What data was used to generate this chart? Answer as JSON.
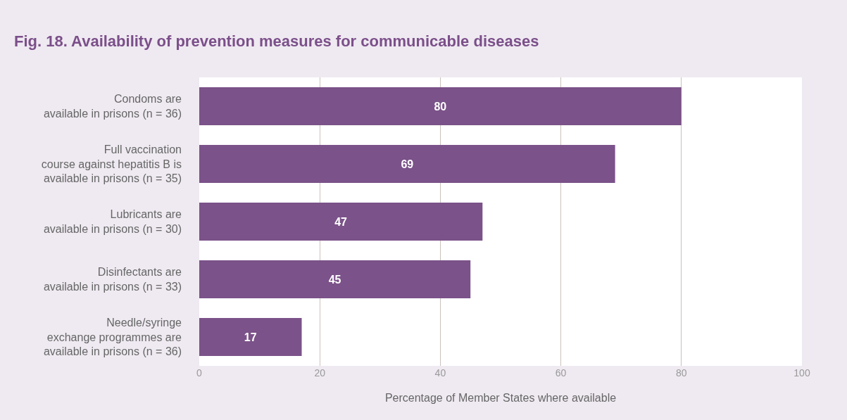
{
  "chart_data": {
    "type": "bar",
    "orientation": "horizontal",
    "title": "Fig. 18. Availability of prevention measures for communicable diseases",
    "xlabel": "Percentage of Member States where available",
    "categories": [
      "Condoms are\navailable in prisons (n = 36)",
      "Full vaccination\ncourse against hepatitis B is\navailable in prisons (n = 35)",
      "Lubricants are\navailable in prisons (n = 30)",
      "Disinfectants are\navailable in prisons (n = 33)",
      "Needle/syringe\nexchange programmes are\navailable in prisons (n = 36)"
    ],
    "values": [
      80,
      69,
      47,
      45,
      17
    ],
    "color": "#7b5289",
    "xlim": [
      0,
      100
    ],
    "xticks": [
      0,
      20,
      40,
      60,
      80,
      100
    ],
    "grid": "x",
    "data_labels": true
  }
}
